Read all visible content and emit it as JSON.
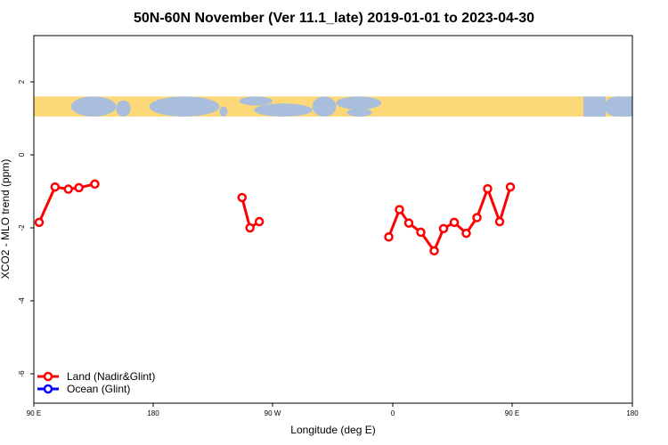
{
  "chart_data": {
    "type": "line",
    "title": "50N-60N November (Ver 11.1_late)   2019-01-01 to 2023-04-30",
    "xlabel": "Longitude (deg E)",
    "ylabel": "XCO2 - MLO trend (ppm)",
    "xlim": [
      90,
      450
    ],
    "ylim": [
      -6.5,
      3.3
    ],
    "x_ticks": [
      {
        "value": 90,
        "label": "90 E"
      },
      {
        "value": 180,
        "label": "180"
      },
      {
        "value": 270,
        "label": "90 W"
      },
      {
        "value": 360,
        "label": "0"
      },
      {
        "value": 450,
        "label": "90 E"
      }
    ],
    "x_ticks_extra": [
      {
        "value": 540,
        "label": "180"
      }
    ],
    "y_ticks": [
      {
        "value": 2,
        "label": "2"
      },
      {
        "value": 0,
        "label": "0"
      },
      {
        "value": -2,
        "label": "-2"
      },
      {
        "value": -4,
        "label": "-4"
      },
      {
        "value": -6,
        "label": "-6"
      }
    ],
    "map_band": {
      "ymin": 1.05,
      "ymax": 1.6,
      "ocean_color": "#a8bedc",
      "land_color": "#fdd878"
    },
    "series": [
      {
        "name": "Land (Nadir&Glint)",
        "color": "#ff0000",
        "segments": [
          [
            [
              94,
              -1.85
            ],
            [
              106,
              -0.88
            ],
            [
              116,
              -0.94
            ],
            [
              124,
              -0.9
            ],
            [
              136,
              -0.8
            ]
          ],
          [
            [
              247,
              -1.17
            ],
            [
              253,
              -2.0
            ],
            [
              260,
              -1.83
            ]
          ],
          [
            [
              357,
              -2.25
            ],
            [
              365,
              -1.5
            ],
            [
              372,
              -1.87
            ],
            [
              381,
              -2.12
            ],
            [
              391,
              -2.63
            ],
            [
              398,
              -2.02
            ],
            [
              406,
              -1.85
            ],
            [
              415,
              -2.15
            ],
            [
              423,
              -1.72
            ],
            [
              431,
              -0.93
            ],
            [
              440,
              -1.83
            ],
            [
              448,
              -0.88
            ]
          ]
        ]
      },
      {
        "name": "Ocean (Glint)",
        "color": "#0000ff",
        "segments": []
      }
    ],
    "legend_position": "bottom-left"
  }
}
